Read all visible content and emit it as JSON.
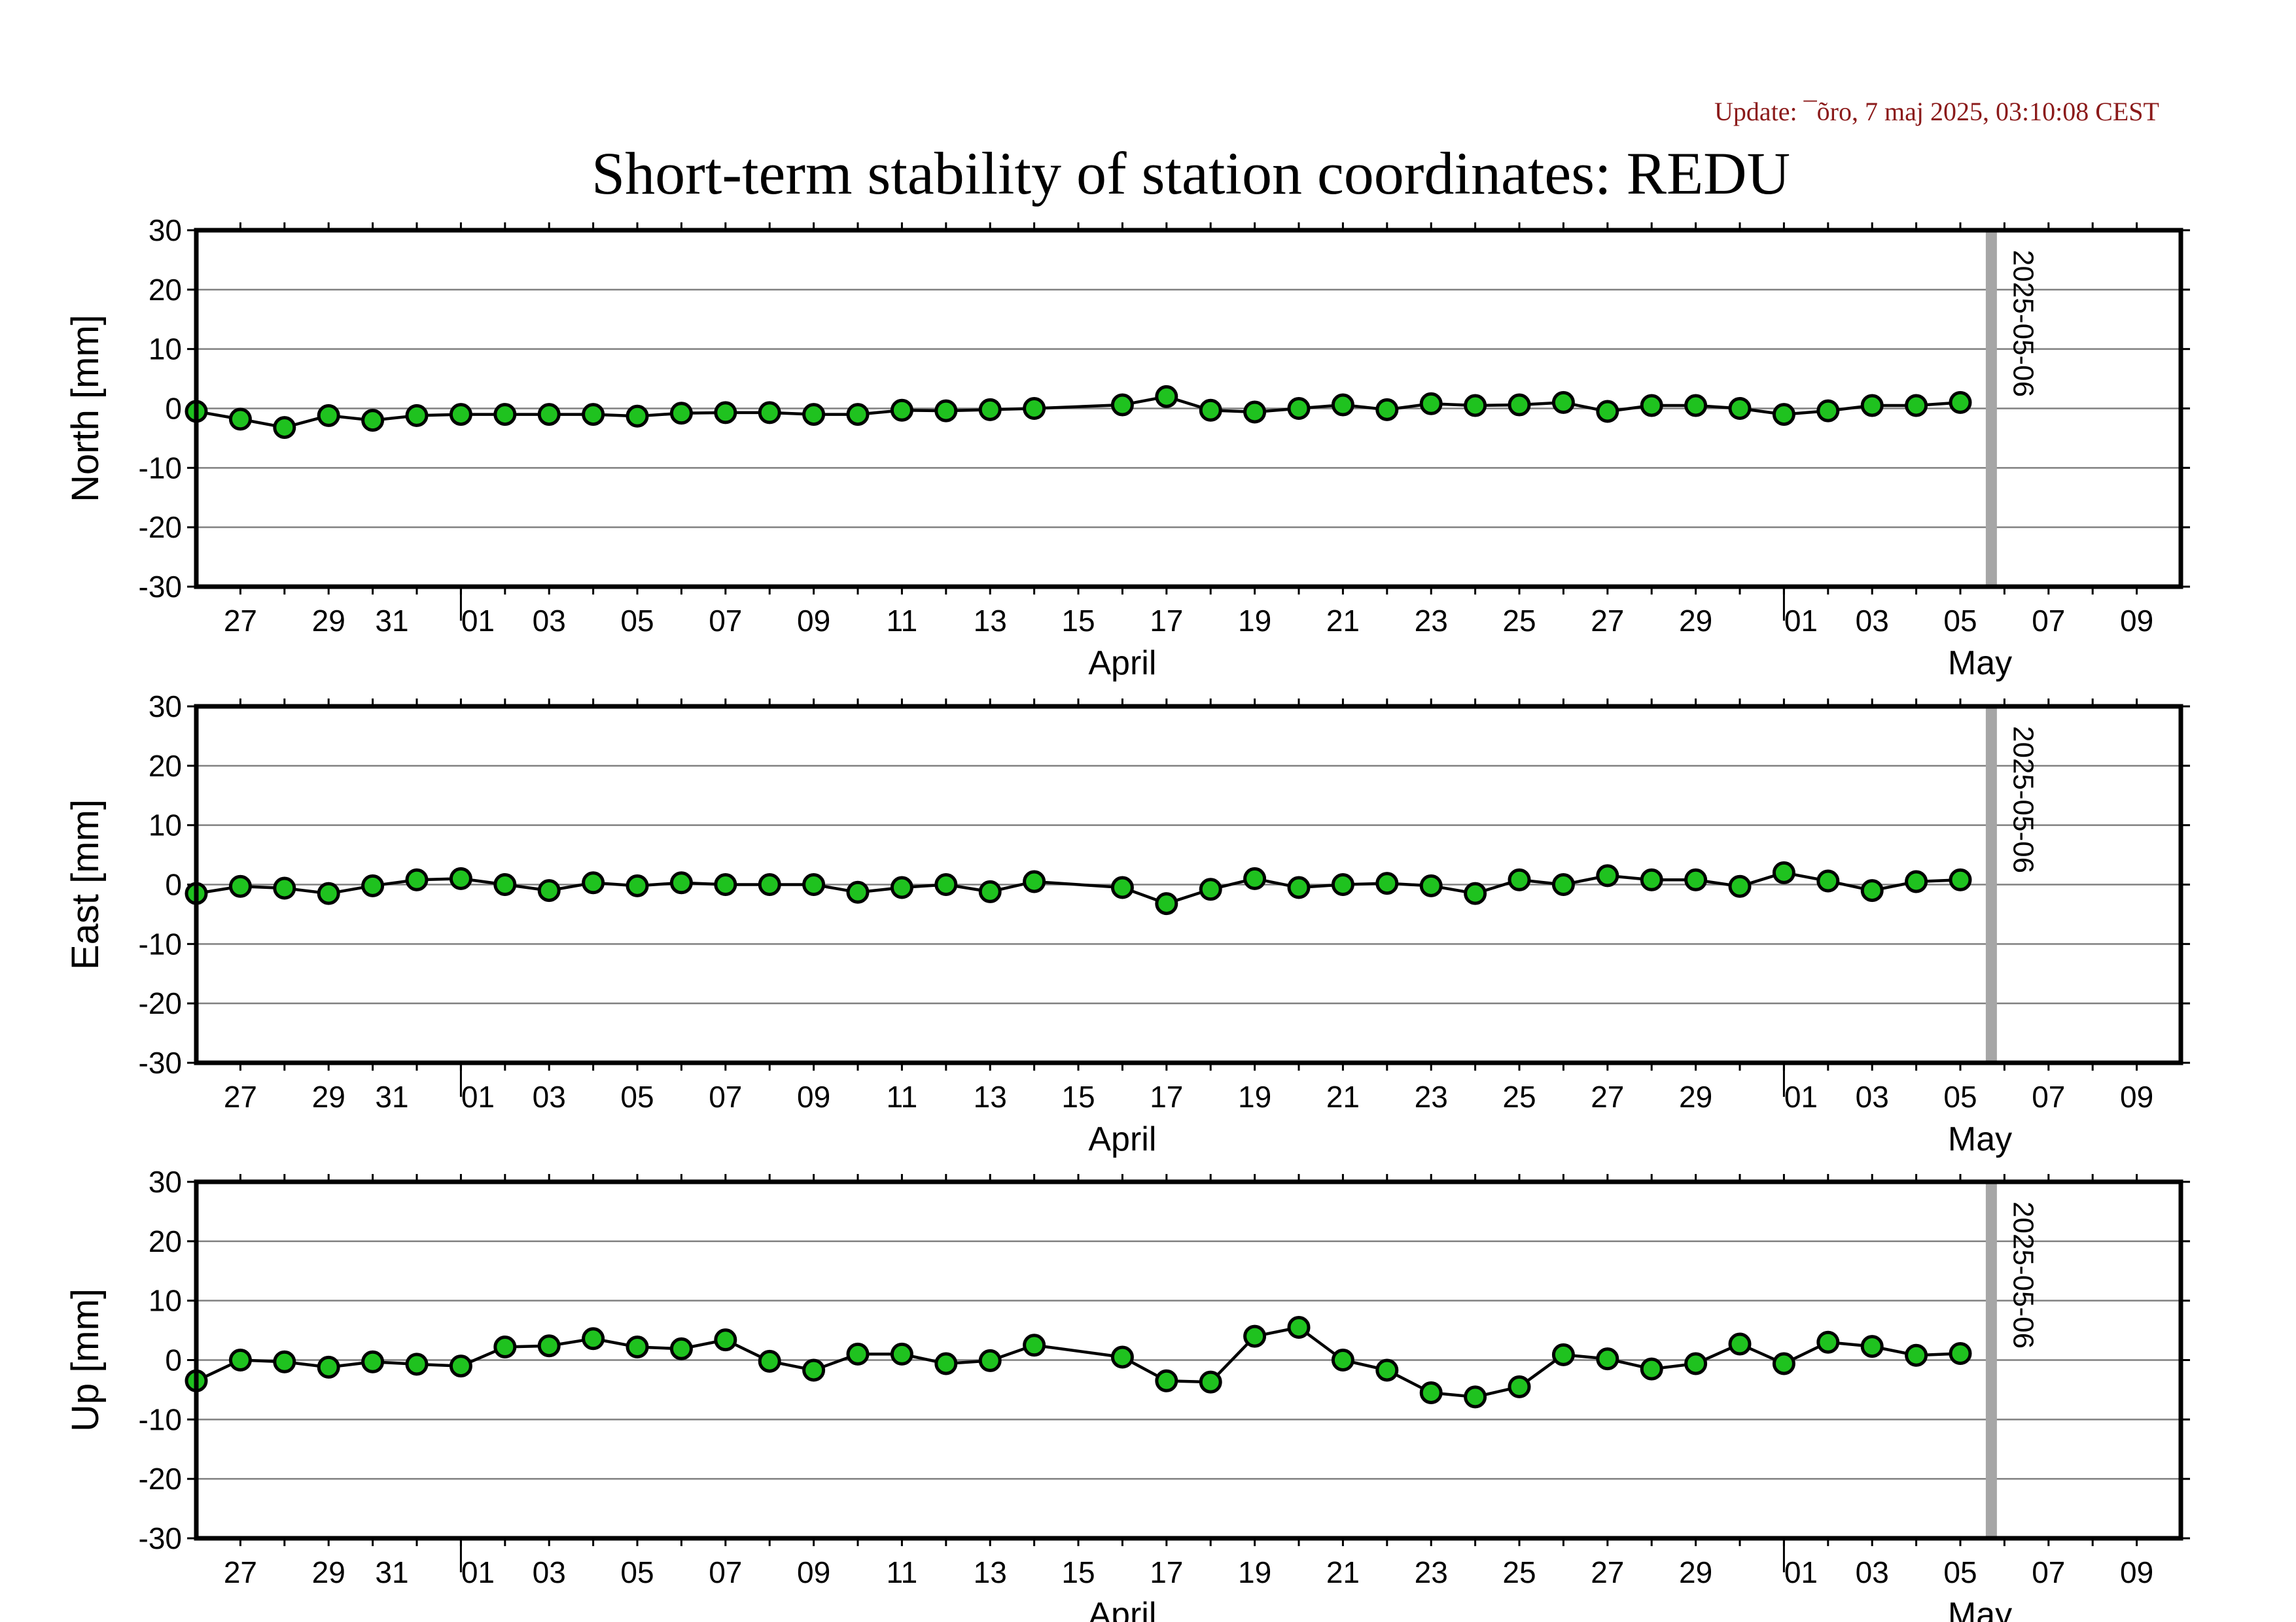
{
  "update_text": "Update: ¯õro, 7 maj 2025, 03:10:08 CEST",
  "title": "Short-term stability of station coordinates: REDU",
  "colors": {
    "marker_fill": "#1fc21f",
    "marker_stroke": "#000000",
    "line": "#000000",
    "gridline": "#808080",
    "marker_line": "#a6a6a6"
  },
  "chart_data": [
    {
      "type": "line",
      "ylabel": "North [mm]",
      "ylim": [
        -30,
        30
      ],
      "yticks": [
        30,
        20,
        10,
        0,
        -10,
        -20,
        -30
      ],
      "xlim": [
        "2025-03-26",
        "2025-05-10"
      ],
      "x_tick_labels": [
        "27",
        "29",
        "31",
        "01",
        "03",
        "05",
        "07",
        "09",
        "11",
        "13",
        "15",
        "17",
        "19",
        "21",
        "23",
        "25",
        "27",
        "29",
        "01",
        "03",
        "05",
        "07",
        "09"
      ],
      "month_labels": [
        "April",
        "May"
      ],
      "grid": true,
      "marker_date": "2025-05-06",
      "marker_label": "2025-05-06",
      "series": [
        {
          "x": [
            "2025-03-26",
            "2025-03-27",
            "2025-03-28",
            "2025-03-29",
            "2025-03-30",
            "2025-03-31",
            "2025-04-01",
            "2025-04-02",
            "2025-04-03",
            "2025-04-04",
            "2025-04-05",
            "2025-04-06",
            "2025-04-07",
            "2025-04-08",
            "2025-04-09",
            "2025-04-10",
            "2025-04-11",
            "2025-04-12",
            "2025-04-13",
            "2025-04-14",
            "2025-04-16",
            "2025-04-17",
            "2025-04-18",
            "2025-04-19",
            "2025-04-20",
            "2025-04-21",
            "2025-04-22",
            "2025-04-23",
            "2025-04-24",
            "2025-04-25",
            "2025-04-26",
            "2025-04-27",
            "2025-04-28",
            "2025-04-29",
            "2025-04-30",
            "2025-05-01",
            "2025-05-02",
            "2025-05-03",
            "2025-05-04",
            "2025-05-05"
          ],
          "values": [
            -0.5,
            -1.8,
            -3.2,
            -1.2,
            -2.0,
            -1.2,
            -1.0,
            -1.0,
            -1.0,
            -1.0,
            -1.3,
            -0.8,
            -0.7,
            -0.7,
            -1.0,
            -1.0,
            -0.3,
            -0.4,
            -0.2,
            0.0,
            0.6,
            2.0,
            -0.3,
            -0.6,
            0.0,
            0.6,
            -0.2,
            0.8,
            0.5,
            0.6,
            1.0,
            -0.5,
            0.5,
            0.5,
            0.0,
            -1.0,
            -0.4,
            0.5,
            0.5,
            1.0
          ]
        }
      ]
    },
    {
      "type": "line",
      "ylabel": "East [mm]",
      "ylim": [
        -30,
        30
      ],
      "yticks": [
        30,
        20,
        10,
        0,
        -10,
        -20,
        -30
      ],
      "xlim": [
        "2025-03-26",
        "2025-05-10"
      ],
      "x_tick_labels": [
        "27",
        "29",
        "31",
        "01",
        "03",
        "05",
        "07",
        "09",
        "11",
        "13",
        "15",
        "17",
        "19",
        "21",
        "23",
        "25",
        "27",
        "29",
        "01",
        "03",
        "05",
        "07",
        "09"
      ],
      "month_labels": [
        "April",
        "May"
      ],
      "grid": true,
      "marker_date": "2025-05-06",
      "marker_label": "2025-05-06",
      "series": [
        {
          "x": [
            "2025-03-26",
            "2025-03-27",
            "2025-03-28",
            "2025-03-29",
            "2025-03-30",
            "2025-03-31",
            "2025-04-01",
            "2025-04-02",
            "2025-04-03",
            "2025-04-04",
            "2025-04-05",
            "2025-04-06",
            "2025-04-07",
            "2025-04-08",
            "2025-04-09",
            "2025-04-10",
            "2025-04-11",
            "2025-04-12",
            "2025-04-13",
            "2025-04-14",
            "2025-04-16",
            "2025-04-17",
            "2025-04-18",
            "2025-04-19",
            "2025-04-20",
            "2025-04-21",
            "2025-04-22",
            "2025-04-23",
            "2025-04-24",
            "2025-04-25",
            "2025-04-26",
            "2025-04-27",
            "2025-04-28",
            "2025-04-29",
            "2025-04-30",
            "2025-05-01",
            "2025-05-02",
            "2025-05-03",
            "2025-05-04",
            "2025-05-05"
          ],
          "values": [
            -1.5,
            -0.3,
            -0.6,
            -1.5,
            -0.2,
            0.8,
            1.0,
            0.0,
            -1.0,
            0.3,
            -0.2,
            0.3,
            0.0,
            0.0,
            0.0,
            -1.3,
            -0.5,
            0.0,
            -1.2,
            0.5,
            -0.5,
            -3.2,
            -0.8,
            1.0,
            -0.5,
            0.0,
            0.2,
            -0.2,
            -1.5,
            0.8,
            0.0,
            1.5,
            0.8,
            0.8,
            -0.3,
            2.0,
            0.6,
            -1.0,
            0.5,
            0.8
          ]
        }
      ]
    },
    {
      "type": "line",
      "ylabel": "Up [mm]",
      "ylim": [
        -30,
        30
      ],
      "yticks": [
        30,
        20,
        10,
        0,
        -10,
        -20,
        -30
      ],
      "xlim": [
        "2025-03-26",
        "2025-05-10"
      ],
      "x_tick_labels": [
        "27",
        "29",
        "31",
        "01",
        "03",
        "05",
        "07",
        "09",
        "11",
        "13",
        "15",
        "17",
        "19",
        "21",
        "23",
        "25",
        "27",
        "29",
        "01",
        "03",
        "05",
        "07",
        "09"
      ],
      "month_labels": [
        "April",
        "May"
      ],
      "grid": true,
      "marker_date": "2025-05-06",
      "marker_label": "2025-05-06",
      "series": [
        {
          "x": [
            "2025-03-26",
            "2025-03-27",
            "2025-03-28",
            "2025-03-29",
            "2025-03-30",
            "2025-03-31",
            "2025-04-01",
            "2025-04-02",
            "2025-04-03",
            "2025-04-04",
            "2025-04-05",
            "2025-04-06",
            "2025-04-07",
            "2025-04-08",
            "2025-04-09",
            "2025-04-10",
            "2025-04-11",
            "2025-04-12",
            "2025-04-13",
            "2025-04-14",
            "2025-04-16",
            "2025-04-17",
            "2025-04-18",
            "2025-04-19",
            "2025-04-20",
            "2025-04-21",
            "2025-04-22",
            "2025-04-23",
            "2025-04-24",
            "2025-04-25",
            "2025-04-26",
            "2025-04-27",
            "2025-04-28",
            "2025-04-29",
            "2025-04-30",
            "2025-05-01",
            "2025-05-02",
            "2025-05-03",
            "2025-05-04",
            "2025-05-05"
          ],
          "values": [
            -3.5,
            0.0,
            -0.3,
            -1.2,
            -0.3,
            -0.7,
            -1.0,
            2.2,
            2.4,
            3.6,
            2.2,
            1.9,
            3.4,
            -0.2,
            -1.7,
            1.0,
            1.0,
            -0.6,
            -0.1,
            2.5,
            0.5,
            -3.5,
            -3.7,
            4.0,
            5.5,
            0.0,
            -1.7,
            -5.5,
            -6.2,
            -4.5,
            0.9,
            0.2,
            -1.5,
            -0.6,
            2.7,
            -0.6,
            3.0,
            2.3,
            0.8,
            1.1
          ]
        }
      ]
    }
  ]
}
